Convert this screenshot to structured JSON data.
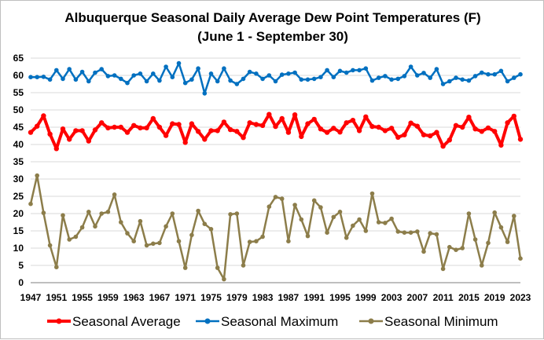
{
  "chart_data": {
    "type": "line",
    "title": "Albuquerque Seasonal Daily Average Dew Point Temperatures (F)",
    "subtitle": "(June 1 - September 30)",
    "xlabel": "",
    "ylabel": "",
    "xlim": [
      1947,
      2023
    ],
    "ylim": [
      0,
      65
    ],
    "y_ticks": [
      0,
      5,
      10,
      15,
      20,
      25,
      30,
      35,
      40,
      45,
      50,
      55,
      60,
      65
    ],
    "x_ticks": [
      1947,
      1951,
      1955,
      1959,
      1963,
      1967,
      1971,
      1975,
      1979,
      1983,
      1987,
      1991,
      1995,
      1999,
      2003,
      2007,
      2011,
      2015,
      2019,
      2023
    ],
    "grid": "horizontal",
    "legend_position": "bottom",
    "x": [
      1947,
      1948,
      1949,
      1950,
      1951,
      1952,
      1953,
      1954,
      1955,
      1956,
      1957,
      1958,
      1959,
      1960,
      1961,
      1962,
      1963,
      1964,
      1965,
      1966,
      1967,
      1968,
      1969,
      1970,
      1971,
      1972,
      1973,
      1974,
      1975,
      1976,
      1977,
      1978,
      1979,
      1980,
      1981,
      1982,
      1983,
      1984,
      1985,
      1986,
      1987,
      1988,
      1989,
      1990,
      1991,
      1992,
      1993,
      1994,
      1995,
      1996,
      1997,
      1998,
      1999,
      2000,
      2001,
      2002,
      2003,
      2004,
      2005,
      2006,
      2007,
      2008,
      2009,
      2010,
      2011,
      2012,
      2013,
      2014,
      2015,
      2016,
      2017,
      2018,
      2019,
      2020,
      2021,
      2022,
      2023
    ],
    "series": [
      {
        "name": "Seasonal Average",
        "color": "#ff0000",
        "values": [
          43.5,
          45.3,
          48.3,
          43.0,
          38.8,
          44.5,
          41.5,
          44.0,
          44.0,
          41.0,
          44.2,
          46.3,
          44.8,
          45.0,
          45.0,
          43.5,
          45.5,
          44.8,
          44.8,
          47.5,
          45.0,
          42.6,
          46.0,
          45.8,
          40.6,
          46.0,
          43.8,
          41.5,
          44.0,
          44.0,
          46.5,
          44.3,
          43.8,
          42.0,
          46.3,
          45.8,
          45.5,
          48.7,
          45.2,
          47.5,
          43.5,
          48.6,
          42.3,
          46.0,
          47.3,
          44.5,
          43.5,
          44.7,
          43.6,
          46.3,
          47.0,
          44.0,
          48.0,
          45.2,
          45.0,
          44.0,
          44.7,
          42.1,
          42.8,
          46.2,
          45.3,
          42.8,
          42.5,
          43.5,
          39.5,
          41.3,
          45.5,
          45.0,
          47.9,
          44.5,
          43.8,
          44.8,
          43.8,
          39.8,
          46.3,
          48.2,
          41.5
        ]
      },
      {
        "name": "Seasonal Maximum",
        "color": "#0070c0",
        "values": [
          59.5,
          59.5,
          59.6,
          58.8,
          61.5,
          59.0,
          61.8,
          58.8,
          61.0,
          58.3,
          60.8,
          61.8,
          59.8,
          60.0,
          59.0,
          57.8,
          60.0,
          60.5,
          58.3,
          60.5,
          58.5,
          62.5,
          59.5,
          63.5,
          57.8,
          58.8,
          62.0,
          54.8,
          60.5,
          58.3,
          62.0,
          58.5,
          57.5,
          59.0,
          61.0,
          60.5,
          59.0,
          60.0,
          58.3,
          60.2,
          60.5,
          60.8,
          58.8,
          58.8,
          59.0,
          59.5,
          61.5,
          59.5,
          61.3,
          60.8,
          61.5,
          61.5,
          62.0,
          58.5,
          59.3,
          59.8,
          58.8,
          59.0,
          59.8,
          62.5,
          60.0,
          60.7,
          59.3,
          61.8,
          57.5,
          58.3,
          59.3,
          58.8,
          58.5,
          59.8,
          60.8,
          60.3,
          60.3,
          61.3,
          58.3,
          59.3,
          60.3
        ]
      },
      {
        "name": "Seasonal Minimum",
        "color": "#8c7d4a",
        "values": [
          22.8,
          31.0,
          20.2,
          10.8,
          4.5,
          19.5,
          12.5,
          13.3,
          16.0,
          20.5,
          16.3,
          20.0,
          20.5,
          25.5,
          17.5,
          14.3,
          12.0,
          17.8,
          10.8,
          11.3,
          11.5,
          16.3,
          20.0,
          12.0,
          4.3,
          13.8,
          20.8,
          17.0,
          15.5,
          4.3,
          1.0,
          19.8,
          20.0,
          5.0,
          11.8,
          12.0,
          13.3,
          22.0,
          24.8,
          24.3,
          12.0,
          22.5,
          18.3,
          13.5,
          23.8,
          21.8,
          14.5,
          19.0,
          20.5,
          13.0,
          16.5,
          18.3,
          15.0,
          25.8,
          17.5,
          17.3,
          18.5,
          14.8,
          14.5,
          14.5,
          14.8,
          9.0,
          14.3,
          14.0,
          4.0,
          10.3,
          9.5,
          10.0,
          20.0,
          12.5,
          5.0,
          11.5,
          20.3,
          16.0,
          11.8,
          19.3,
          7.0
        ]
      }
    ]
  }
}
